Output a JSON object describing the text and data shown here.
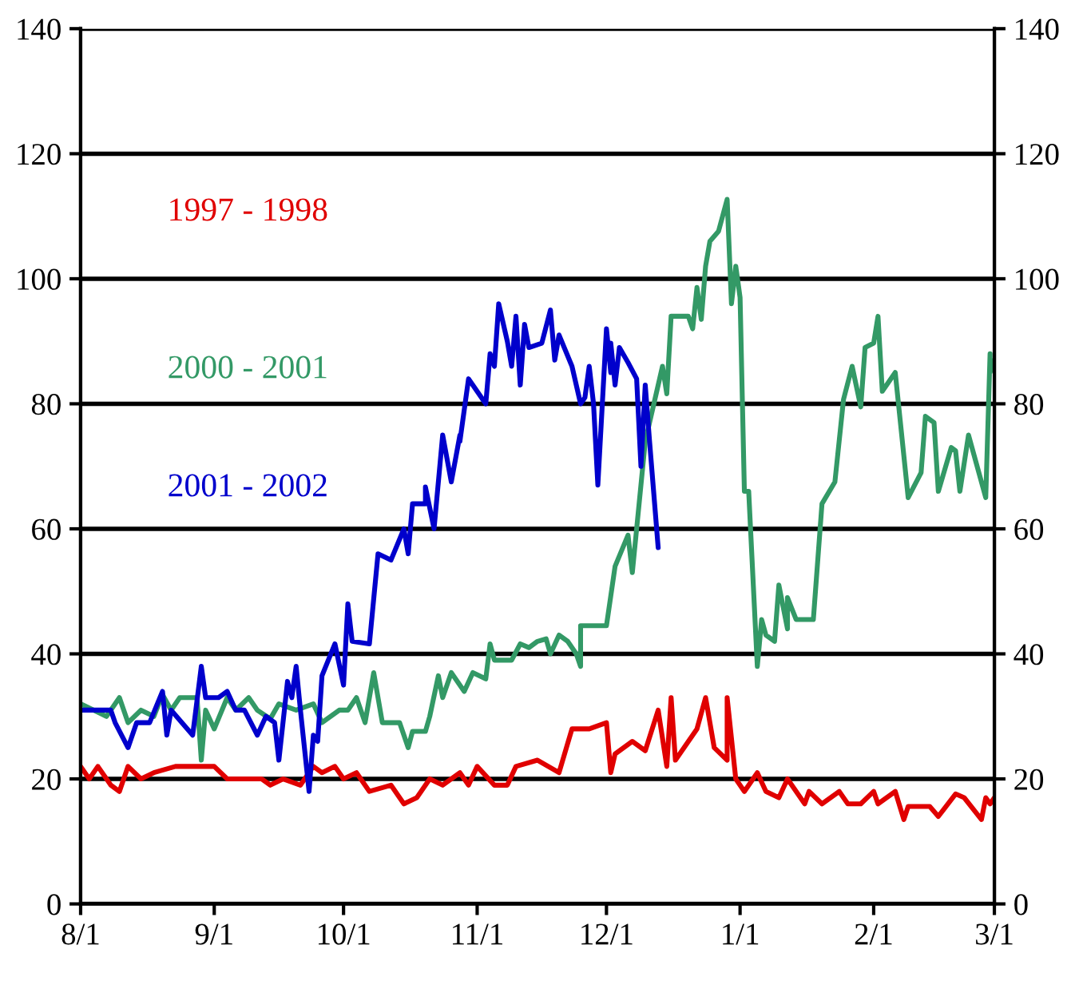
{
  "chart_data": {
    "type": "line",
    "xlim": [
      "2000-08-01",
      "2001-03-01"
    ],
    "xticks": [
      {
        "value": "2000-08-01",
        "label": "8/1"
      },
      {
        "value": "2000-09-01",
        "label": "9/1"
      },
      {
        "value": "2000-10-01",
        "label": "10/1"
      },
      {
        "value": "2000-11-01",
        "label": "11/1"
      },
      {
        "value": "2000-12-01",
        "label": "12/1"
      },
      {
        "value": "2001-01-01",
        "label": "1/1"
      },
      {
        "value": "2001-02-01",
        "label": "2/1"
      },
      {
        "value": "2001-03-01",
        "label": "3/1"
      }
    ],
    "ylim": [
      0,
      140
    ],
    "yticks": [
      0,
      20,
      40,
      60,
      80,
      100,
      120,
      140
    ],
    "y2lim": [
      0,
      140
    ],
    "y2ticks": [
      0,
      20,
      40,
      60,
      80,
      100,
      120,
      140
    ],
    "grid": "y",
    "line_style": "solid",
    "series": [
      {
        "name": "1997 - 1998",
        "color": "#e00000",
        "x": [
          "2000-08-01",
          "2000-08-03",
          "2000-08-05",
          "2000-08-08",
          "2000-08-10",
          "2000-08-12",
          "2000-08-15",
          "2000-08-18",
          "2000-08-23",
          "2000-09-01",
          "2000-09-04",
          "2000-09-12",
          "2000-09-14",
          "2000-09-17",
          "2000-09-21",
          "2000-09-24",
          "2000-09-26",
          "2000-09-29",
          "2000-10-01",
          "2000-10-04",
          "2000-10-07",
          "2000-10-12",
          "2000-10-15",
          "2000-10-18",
          "2000-10-21",
          "2000-10-24",
          "2000-10-28",
          "2000-10-30",
          "2000-11-01",
          "2000-11-05",
          "2000-11-08",
          "2000-11-10",
          "2000-11-15",
          "2000-11-20",
          "2000-11-23",
          "2000-11-27",
          "2000-12-01",
          "2000-12-02",
          "2000-12-03",
          "2000-12-07",
          "2000-12-10",
          "2000-12-13",
          "2000-12-15",
          "2000-12-16",
          "2000-12-17",
          "2000-12-22",
          "2000-12-24",
          "2000-12-26",
          "2000-12-29",
          "2000-12-29",
          "2000-12-31",
          "2001-01-02",
          "2001-01-05",
          "2001-01-07",
          "2001-01-10",
          "2001-01-12",
          "2001-01-16",
          "2001-01-17",
          "2001-01-20",
          "2001-01-24",
          "2001-01-26",
          "2001-01-29",
          "2001-02-01",
          "2001-02-02",
          "2001-02-06",
          "2001-02-08",
          "2001-02-09",
          "2001-02-14",
          "2001-02-16",
          "2001-02-20",
          "2001-02-22",
          "2001-02-26",
          "2001-02-27",
          "2001-02-28",
          "2001-03-01"
        ],
        "values": [
          22,
          20,
          22,
          19,
          18,
          22,
          20,
          21,
          22,
          22,
          20,
          20,
          19,
          20,
          19,
          22,
          21,
          22,
          20,
          21,
          18,
          19,
          16,
          17,
          20,
          19,
          21,
          19,
          22,
          19,
          19,
          22,
          23,
          21,
          28,
          28,
          29,
          21,
          24,
          26,
          24.5,
          31,
          22,
          33,
          23,
          28,
          33,
          25,
          23,
          33,
          20,
          18,
          21,
          18,
          17,
          20,
          16,
          18,
          16,
          18,
          16,
          16,
          18,
          16,
          18,
          13.5,
          15.6,
          15.6,
          14,
          17.6,
          17,
          13.5,
          17,
          16,
          17
        ]
      },
      {
        "name": "2000 - 2001",
        "color": "#339966",
        "x": [
          "2000-08-01",
          "2000-08-07",
          "2000-08-10",
          "2000-08-12",
          "2000-08-15",
          "2000-08-18",
          "2000-08-20",
          "2000-08-22",
          "2000-08-24",
          "2000-08-28",
          "2000-08-29",
          "2000-08-30",
          "2000-09-01",
          "2000-09-04",
          "2000-09-06",
          "2000-09-09",
          "2000-09-11",
          "2000-09-14",
          "2000-09-16",
          "2000-09-20",
          "2000-09-24",
          "2000-09-26",
          "2000-09-30",
          "2000-10-02",
          "2000-10-04",
          "2000-10-06",
          "2000-10-08",
          "2000-10-10",
          "2000-10-14",
          "2000-10-16",
          "2000-10-17",
          "2000-10-20",
          "2000-10-21",
          "2000-10-23",
          "2000-10-24",
          "2000-10-26",
          "2000-10-29",
          "2000-10-31",
          "2000-11-03",
          "2000-11-04",
          "2000-11-05",
          "2000-11-09",
          "2000-11-11",
          "2000-11-13",
          "2000-11-15",
          "2000-11-17",
          "2000-11-18",
          "2000-11-20",
          "2000-11-22",
          "2000-11-24",
          "2000-11-25",
          "2000-11-25",
          "2000-12-01",
          "2000-12-03",
          "2000-12-06",
          "2000-12-07",
          "2000-12-09",
          "2000-12-10",
          "2000-12-12",
          "2000-12-14",
          "2000-12-15",
          "2000-12-16",
          "2000-12-20",
          "2000-12-21",
          "2000-12-22",
          "2000-12-23",
          "2000-12-24",
          "2000-12-25",
          "2000-12-27",
          "2000-12-29",
          "2000-12-30",
          "2000-12-31",
          "2001-01-01",
          "2001-01-02",
          "2001-01-03",
          "2001-01-05",
          "2001-01-06",
          "2001-01-07",
          "2001-01-09",
          "2001-01-10",
          "2001-01-12",
          "2001-01-12",
          "2001-01-14",
          "2001-01-18",
          "2001-01-20",
          "2001-01-23",
          "2001-01-25",
          "2001-01-27",
          "2001-01-29",
          "2001-01-30",
          "2001-02-01",
          "2001-02-02",
          "2001-02-03",
          "2001-02-06",
          "2001-02-09",
          "2001-02-12",
          "2001-02-13",
          "2001-02-15",
          "2001-02-16",
          "2001-02-19",
          "2001-02-20",
          "2001-02-21",
          "2001-02-23",
          "2001-02-27",
          "2001-02-28",
          "2001-02-28",
          "2001-03-01"
        ],
        "values": [
          32,
          30,
          33,
          29,
          31,
          30,
          33.5,
          31,
          33,
          33,
          23,
          31,
          28,
          33,
          31,
          33,
          31,
          29.6,
          32,
          31,
          32,
          29,
          31,
          31,
          33,
          29,
          37,
          29,
          29,
          25,
          27.6,
          27.6,
          30,
          36.5,
          33,
          37,
          34,
          37,
          36,
          41.6,
          39,
          39,
          41.6,
          41,
          42,
          42.4,
          40,
          43,
          42,
          40,
          38,
          44.5,
          44.5,
          54,
          59,
          53,
          67,
          74,
          80,
          86,
          81.6,
          94,
          94,
          92,
          98.6,
          93.5,
          102,
          106,
          107.6,
          112.7,
          96,
          102,
          97,
          66,
          66,
          38,
          45.5,
          43,
          42,
          51,
          44,
          49,
          45.5,
          45.5,
          64,
          67.5,
          80.7,
          86,
          79.5,
          89,
          89.7,
          94,
          82,
          85,
          65,
          69,
          78,
          77,
          66,
          73,
          72.5,
          66,
          75,
          65,
          88,
          85,
          87
        ]
      },
      {
        "name": "2001 - 2002",
        "color": "#0000cc",
        "x": [
          "2000-08-01",
          "2000-08-08",
          "2000-08-09",
          "2000-08-12",
          "2000-08-14",
          "2000-08-17",
          "2000-08-20",
          "2000-08-21",
          "2000-08-22",
          "2000-08-27",
          "2000-08-29",
          "2000-08-30",
          "2000-09-02",
          "2000-09-04",
          "2000-09-06",
          "2000-09-08",
          "2000-09-11",
          "2000-09-13",
          "2000-09-15",
          "2000-09-16",
          "2000-09-18",
          "2000-09-19",
          "2000-09-20",
          "2000-09-21",
          "2000-09-23",
          "2000-09-24",
          "2000-09-25",
          "2000-09-26",
          "2000-09-29",
          "2000-10-01",
          "2000-10-02",
          "2000-10-03",
          "2000-10-07",
          "2000-10-09",
          "2000-10-12",
          "2000-10-15",
          "2000-10-16",
          "2000-10-17",
          "2000-10-20",
          "2000-10-20",
          "2000-10-22",
          "2000-10-24",
          "2000-10-26",
          "2000-10-28",
          "2000-10-28",
          "2000-10-30",
          "2000-11-03",
          "2000-11-04",
          "2000-11-05",
          "2000-11-06",
          "2000-11-08",
          "2000-11-09",
          "2000-11-10",
          "2000-11-11",
          "2000-11-12",
          "2000-11-13",
          "2000-11-16",
          "2000-11-18",
          "2000-11-19",
          "2000-11-20",
          "2000-11-23",
          "2000-11-25",
          "2000-11-26",
          "2000-11-27",
          "2000-11-28",
          "2000-11-29",
          "2000-12-01",
          "2000-12-02",
          "2000-12-02",
          "2000-12-03",
          "2000-12-04",
          "2000-12-06",
          "2000-12-08",
          "2000-12-09",
          "2000-12-10",
          "2000-12-11",
          "2000-12-13"
        ],
        "values": [
          31,
          31,
          29,
          25,
          29,
          29,
          34,
          27,
          31,
          27,
          38,
          33,
          33,
          34,
          31,
          31,
          27,
          30,
          29,
          23,
          35.6,
          33,
          38,
          31,
          18,
          27,
          26,
          36.5,
          41.6,
          35,
          48,
          42,
          41.6,
          56,
          55,
          60,
          56,
          64,
          64,
          66.7,
          60,
          75,
          67.5,
          75,
          74,
          84,
          80,
          88,
          86,
          96,
          90,
          86,
          94,
          83,
          92.7,
          89,
          89.7,
          95,
          87,
          91,
          86,
          80,
          81,
          86,
          80,
          67,
          92,
          85,
          89.7,
          83,
          89,
          86.6,
          84,
          70,
          83,
          74,
          57
        ]
      }
    ]
  }
}
